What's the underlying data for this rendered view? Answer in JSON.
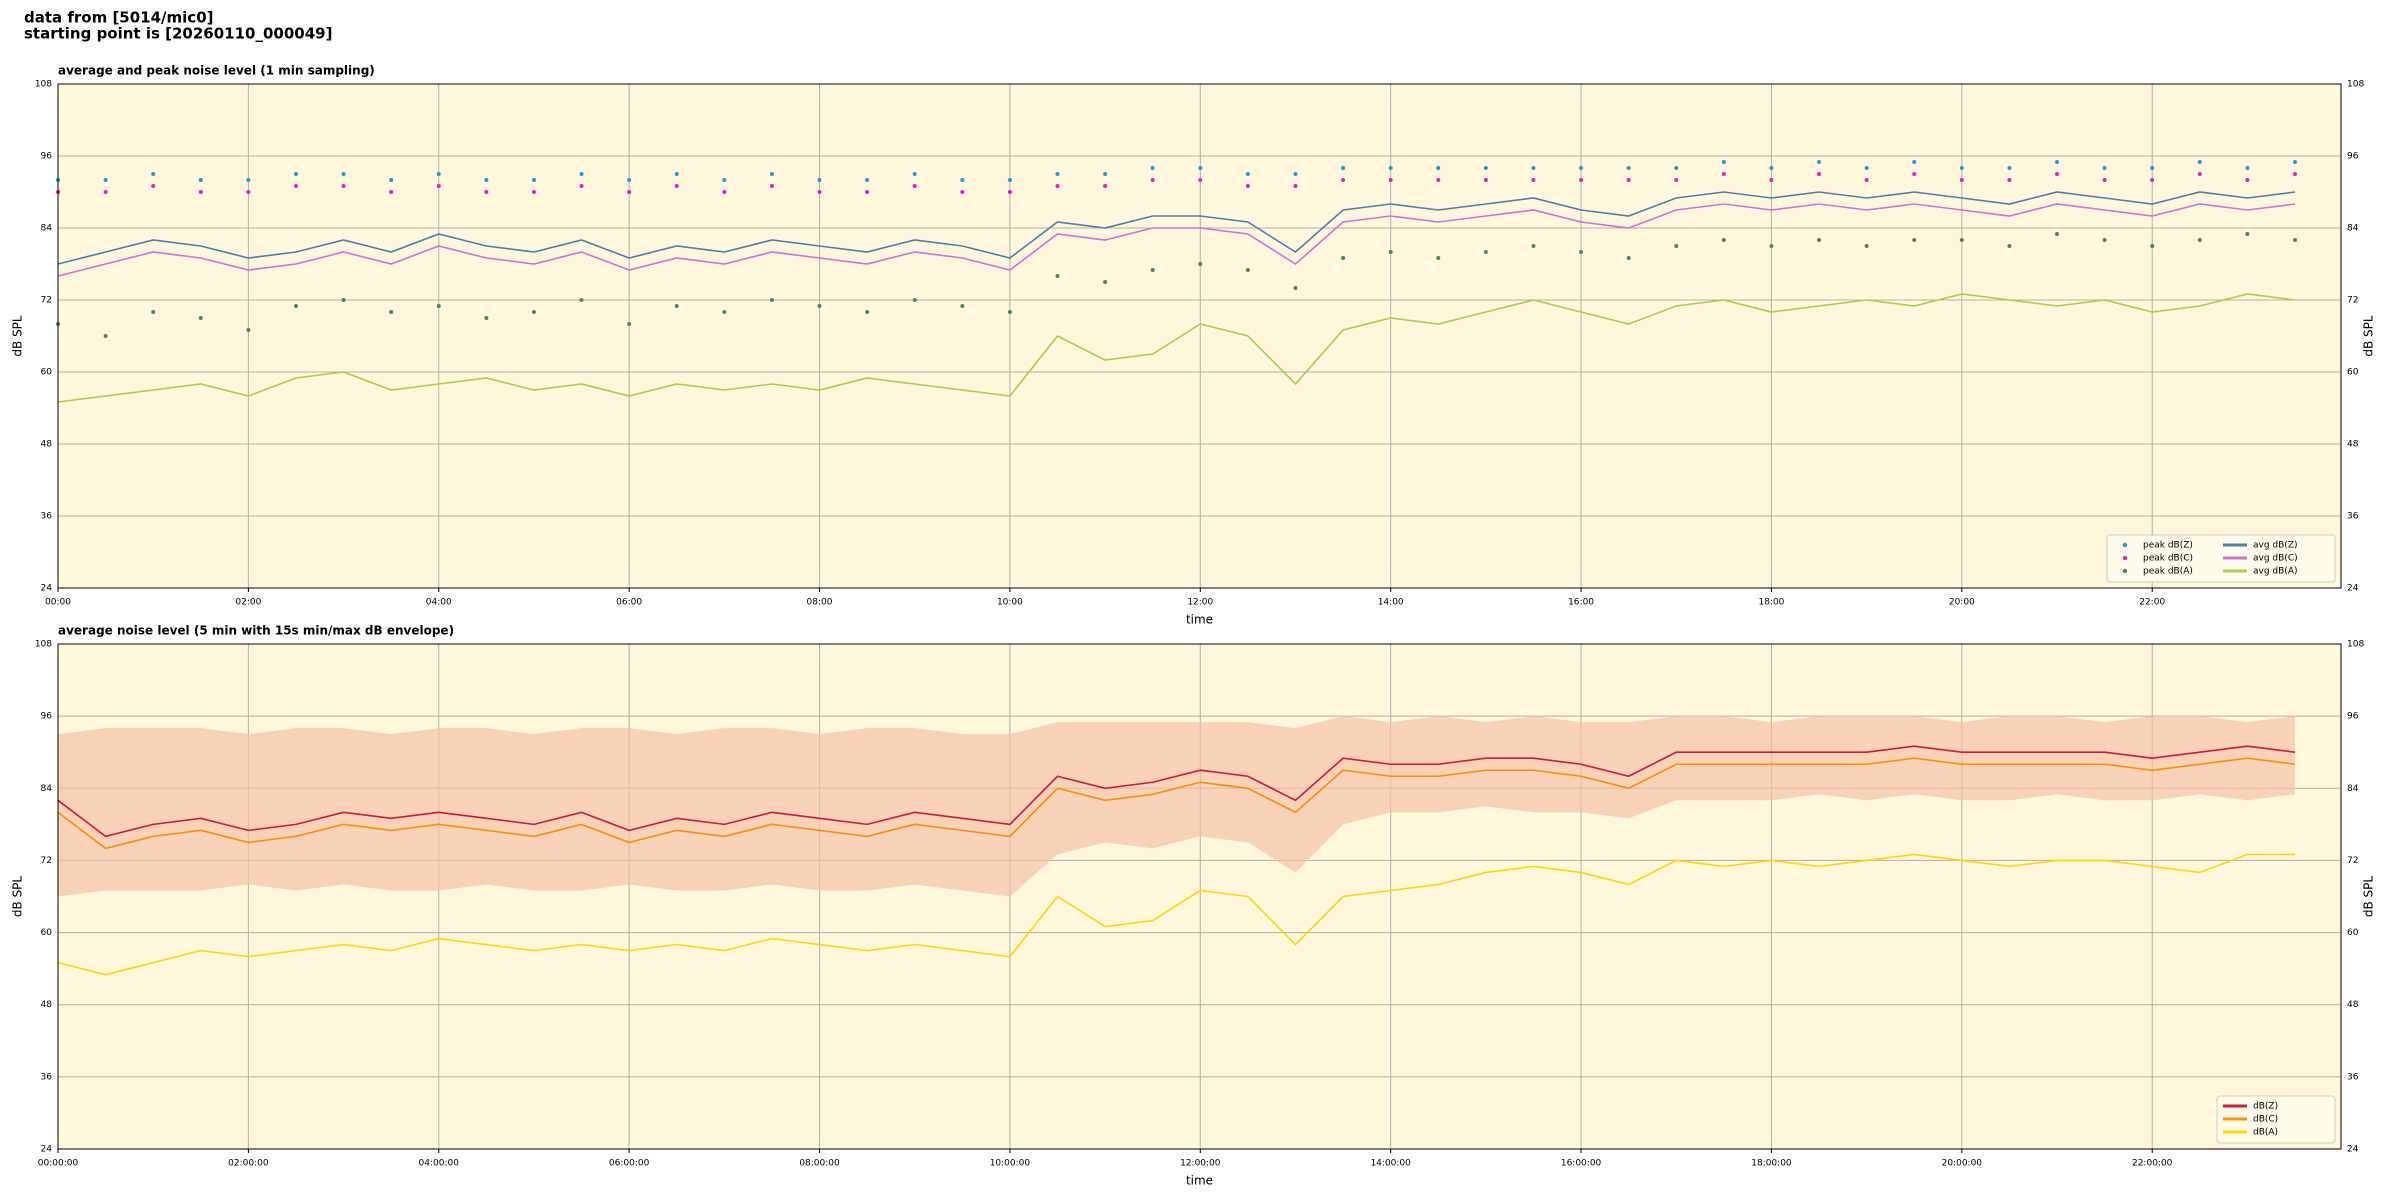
{
  "header": {
    "line1": "data from [5014/mic0]",
    "line2": "starting point is [20260110_000049]"
  },
  "chart_data": [
    {
      "type": "line",
      "title": "average and peak noise level (1 min sampling)",
      "xlabel": "time",
      "ylabel": "dB SPL",
      "x": [
        "00:00",
        "00:30",
        "01:00",
        "01:30",
        "02:00",
        "02:30",
        "03:00",
        "03:30",
        "04:00",
        "04:30",
        "05:00",
        "05:30",
        "06:00",
        "06:30",
        "07:00",
        "07:30",
        "08:00",
        "08:30",
        "09:00",
        "09:30",
        "10:00",
        "10:30",
        "11:00",
        "11:30",
        "12:00",
        "12:30",
        "13:00",
        "13:30",
        "14:00",
        "14:30",
        "15:00",
        "15:30",
        "16:00",
        "16:30",
        "17:00",
        "17:30",
        "18:00",
        "18:30",
        "19:00",
        "19:30",
        "20:00",
        "20:30",
        "21:00",
        "21:30",
        "22:00",
        "22:30",
        "23:00",
        "23:30"
      ],
      "xlim": [
        "00:00",
        "23:59"
      ],
      "xticks": [
        "00:00",
        "02:00",
        "04:00",
        "06:00",
        "08:00",
        "10:00",
        "12:00",
        "14:00",
        "16:00",
        "18:00",
        "20:00",
        "22:00"
      ],
      "ylim": [
        24,
        108
      ],
      "yticks": [
        24,
        36,
        48,
        60,
        72,
        84,
        96,
        108
      ],
      "grid": true,
      "legend": "lower right",
      "legend_columns": 2,
      "series": [
        {
          "name": "peak dB(Z)",
          "color": "#1f9bd7",
          "style": "dots",
          "values": [
            92,
            92,
            93,
            92,
            92,
            93,
            93,
            92,
            93,
            92,
            92,
            93,
            92,
            93,
            92,
            93,
            92,
            92,
            93,
            92,
            92,
            93,
            93,
            94,
            94,
            93,
            93,
            94,
            94,
            94,
            94,
            94,
            94,
            94,
            94,
            95,
            94,
            95,
            94,
            95,
            94,
            94,
            95,
            94,
            94,
            95,
            94,
            95
          ]
        },
        {
          "name": "peak dB(C)",
          "color": "#e020c8",
          "style": "dots",
          "values": [
            90,
            90,
            91,
            90,
            90,
            91,
            91,
            90,
            91,
            90,
            90,
            91,
            90,
            91,
            90,
            91,
            90,
            90,
            91,
            90,
            90,
            91,
            91,
            92,
            92,
            91,
            91,
            92,
            92,
            92,
            92,
            92,
            92,
            92,
            92,
            93,
            92,
            93,
            92,
            93,
            92,
            92,
            93,
            92,
            92,
            93,
            92,
            93
          ]
        },
        {
          "name": "peak dB(A)",
          "color": "#4c8c4a",
          "style": "dots",
          "values": [
            68,
            66,
            70,
            69,
            67,
            71,
            72,
            70,
            71,
            69,
            70,
            72,
            68,
            71,
            70,
            72,
            71,
            70,
            72,
            71,
            70,
            76,
            75,
            77,
            78,
            77,
            74,
            79,
            80,
            79,
            80,
            81,
            80,
            79,
            81,
            82,
            81,
            82,
            81,
            82,
            82,
            81,
            83,
            82,
            81,
            82,
            83,
            82
          ]
        },
        {
          "name": "avg dB(Z)",
          "color": "#4a80b4",
          "style": "line",
          "values": [
            78,
            80,
            82,
            81,
            79,
            80,
            82,
            80,
            83,
            81,
            80,
            82,
            79,
            81,
            80,
            82,
            81,
            80,
            82,
            81,
            79,
            85,
            84,
            86,
            86,
            85,
            80,
            87,
            88,
            87,
            88,
            89,
            87,
            86,
            89,
            90,
            89,
            90,
            89,
            90,
            89,
            88,
            90,
            89,
            88,
            90,
            89,
            90
          ]
        },
        {
          "name": "avg dB(C)",
          "color": "#d070d8",
          "style": "line",
          "values": [
            76,
            78,
            80,
            79,
            77,
            78,
            80,
            78,
            81,
            79,
            78,
            80,
            77,
            79,
            78,
            80,
            79,
            78,
            80,
            79,
            77,
            83,
            82,
            84,
            84,
            83,
            78,
            85,
            86,
            85,
            86,
            87,
            85,
            84,
            87,
            88,
            87,
            88,
            87,
            88,
            87,
            86,
            88,
            87,
            86,
            88,
            87,
            88
          ]
        },
        {
          "name": "avg dB(A)",
          "color": "#a8d048",
          "style": "line",
          "values": [
            55,
            56,
            57,
            58,
            56,
            59,
            60,
            57,
            58,
            59,
            57,
            58,
            56,
            58,
            57,
            58,
            57,
            59,
            58,
            57,
            56,
            66,
            62,
            63,
            68,
            66,
            58,
            67,
            69,
            68,
            70,
            72,
            70,
            68,
            71,
            72,
            70,
            71,
            72,
            71,
            73,
            72,
            71,
            72,
            70,
            71,
            73,
            72
          ]
        }
      ]
    },
    {
      "type": "line",
      "title": "average noise level (5 min with 15s min/max dB envelope)",
      "xlabel": "time",
      "ylabel": "dB SPL",
      "x": [
        "00:00:00",
        "00:30:00",
        "01:00:00",
        "01:30:00",
        "02:00:00",
        "02:30:00",
        "03:00:00",
        "03:30:00",
        "04:00:00",
        "04:30:00",
        "05:00:00",
        "05:30:00",
        "06:00:00",
        "06:30:00",
        "07:00:00",
        "07:30:00",
        "08:00:00",
        "08:30:00",
        "09:00:00",
        "09:30:00",
        "10:00:00",
        "10:30:00",
        "11:00:00",
        "11:30:00",
        "12:00:00",
        "12:30:00",
        "13:00:00",
        "13:30:00",
        "14:00:00",
        "14:30:00",
        "15:00:00",
        "15:30:00",
        "16:00:00",
        "16:30:00",
        "17:00:00",
        "17:30:00",
        "18:00:00",
        "18:30:00",
        "19:00:00",
        "19:30:00",
        "20:00:00",
        "20:30:00",
        "21:00:00",
        "21:30:00",
        "22:00:00",
        "22:30:00",
        "23:00:00",
        "23:30:00"
      ],
      "xlim": [
        "00:00:00",
        "23:59:00"
      ],
      "xticks": [
        "00:00:00",
        "02:00:00",
        "04:00:00",
        "06:00:00",
        "08:00:00",
        "10:00:00",
        "12:00:00",
        "14:00:00",
        "16:00:00",
        "18:00:00",
        "20:00:00",
        "22:00:00"
      ],
      "ylim": [
        24,
        108
      ],
      "yticks": [
        24,
        36,
        48,
        60,
        72,
        84,
        96,
        108
      ],
      "grid": true,
      "legend": "lower right",
      "legend_columns": 1,
      "envelope": {
        "color": "#f4c0a8",
        "lower": [
          66,
          67,
          67,
          67,
          68,
          67,
          68,
          67,
          67,
          68,
          67,
          67,
          68,
          67,
          67,
          68,
          67,
          67,
          68,
          67,
          66,
          73,
          75,
          74,
          76,
          75,
          70,
          78,
          80,
          80,
          81,
          80,
          80,
          79,
          82,
          82,
          82,
          83,
          82,
          83,
          82,
          82,
          83,
          82,
          82,
          83,
          82,
          83
        ],
        "upper": [
          93,
          94,
          94,
          94,
          93,
          94,
          94,
          93,
          94,
          94,
          93,
          94,
          94,
          93,
          94,
          94,
          93,
          94,
          94,
          93,
          93,
          95,
          95,
          95,
          95,
          95,
          94,
          96,
          95,
          96,
          95,
          96,
          95,
          95,
          96,
          96,
          95,
          96,
          96,
          96,
          95,
          96,
          96,
          95,
          96,
          96,
          95,
          96
        ]
      },
      "series": [
        {
          "name": "dB(Z)",
          "color": "#d01838",
          "style": "line",
          "values": [
            82,
            76,
            78,
            79,
            77,
            78,
            80,
            79,
            80,
            79,
            78,
            80,
            77,
            79,
            78,
            80,
            79,
            78,
            80,
            79,
            78,
            86,
            84,
            85,
            87,
            86,
            82,
            89,
            88,
            88,
            89,
            89,
            88,
            86,
            90,
            90,
            90,
            90,
            90,
            91,
            90,
            90,
            90,
            90,
            89,
            90,
            91,
            90
          ]
        },
        {
          "name": "dB(C)",
          "color": "#ff8c00",
          "style": "line",
          "values": [
            80,
            74,
            76,
            77,
            75,
            76,
            78,
            77,
            78,
            77,
            76,
            78,
            75,
            77,
            76,
            78,
            77,
            76,
            78,
            77,
            76,
            84,
            82,
            83,
            85,
            84,
            80,
            87,
            86,
            86,
            87,
            87,
            86,
            84,
            88,
            88,
            88,
            88,
            88,
            89,
            88,
            88,
            88,
            88,
            87,
            88,
            89,
            88
          ]
        },
        {
          "name": "dB(A)",
          "color": "#ffd700",
          "style": "line",
          "values": [
            55,
            53,
            55,
            57,
            56,
            57,
            58,
            57,
            59,
            58,
            57,
            58,
            57,
            58,
            57,
            59,
            58,
            57,
            58,
            57,
            56,
            66,
            61,
            62,
            67,
            66,
            58,
            66,
            67,
            68,
            70,
            71,
            70,
            68,
            72,
            71,
            72,
            71,
            72,
            73,
            72,
            71,
            72,
            72,
            71,
            70,
            73,
            73
          ]
        }
      ]
    }
  ]
}
